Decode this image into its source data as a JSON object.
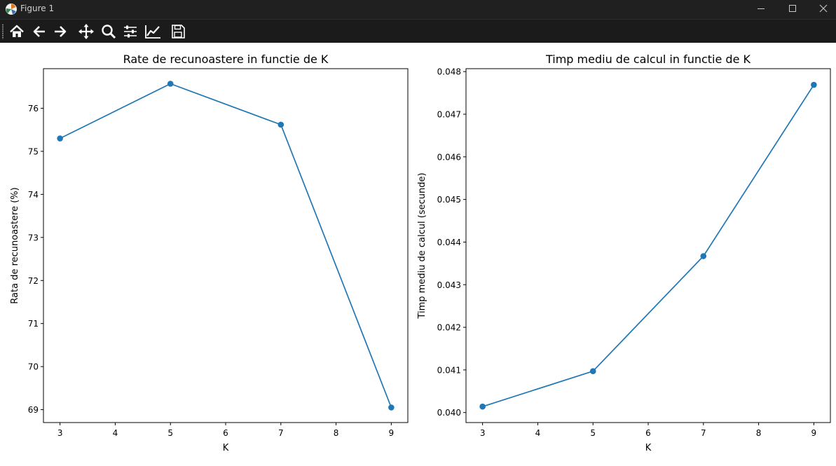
{
  "window": {
    "title": "Figure 1"
  },
  "toolbar": {
    "buttons": [
      "home-icon",
      "back-arrow-icon",
      "forward-arrow-icon",
      "pan-icon",
      "zoom-icon",
      "configure-subplots-icon",
      "edit-axis-icon",
      "save-icon"
    ]
  },
  "colors": {
    "series": "#1f77b4",
    "titlebar": "#202020",
    "toolbar": "#1b1b1b"
  },
  "chart_data": [
    {
      "type": "line",
      "title": "Rate de recunoastere in functie de K",
      "xlabel": "K",
      "ylabel": "Rata de recunoastere (%)",
      "x": [
        3,
        5,
        7,
        9
      ],
      "y": [
        75.3,
        76.57,
        75.62,
        69.05
      ],
      "xlim": [
        2.7,
        9.3
      ],
      "ylim": [
        68.7,
        76.92
      ],
      "xticks": [
        3,
        4,
        5,
        6,
        7,
        8,
        9
      ],
      "xtick_labels": [
        "3",
        "4",
        "5",
        "6",
        "7",
        "8",
        "9"
      ],
      "yticks": [
        69,
        70,
        71,
        72,
        73,
        74,
        75,
        76
      ],
      "ytick_labels": [
        "69",
        "70",
        "71",
        "72",
        "73",
        "74",
        "75",
        "76"
      ],
      "marker": "o",
      "grid": false
    },
    {
      "type": "line",
      "title": "Timp mediu de calcul in functie de K",
      "xlabel": "K",
      "ylabel": "Timp mediu de calcul (secunde)",
      "x": [
        3,
        5,
        7,
        9
      ],
      "y": [
        0.04014,
        0.04097,
        0.04367,
        0.04769
      ],
      "xlim": [
        2.7,
        9.3
      ],
      "ylim": [
        0.039765,
        0.048069
      ],
      "xticks": [
        3,
        4,
        5,
        6,
        7,
        8,
        9
      ],
      "xtick_labels": [
        "3",
        "4",
        "5",
        "6",
        "7",
        "8",
        "9"
      ],
      "yticks": [
        0.04,
        0.041,
        0.042,
        0.043,
        0.044,
        0.045,
        0.046,
        0.047,
        0.048
      ],
      "ytick_labels": [
        "0.040",
        "0.041",
        "0.042",
        "0.043",
        "0.044",
        "0.045",
        "0.046",
        "0.047",
        "0.048"
      ],
      "marker": "o",
      "grid": false
    }
  ]
}
